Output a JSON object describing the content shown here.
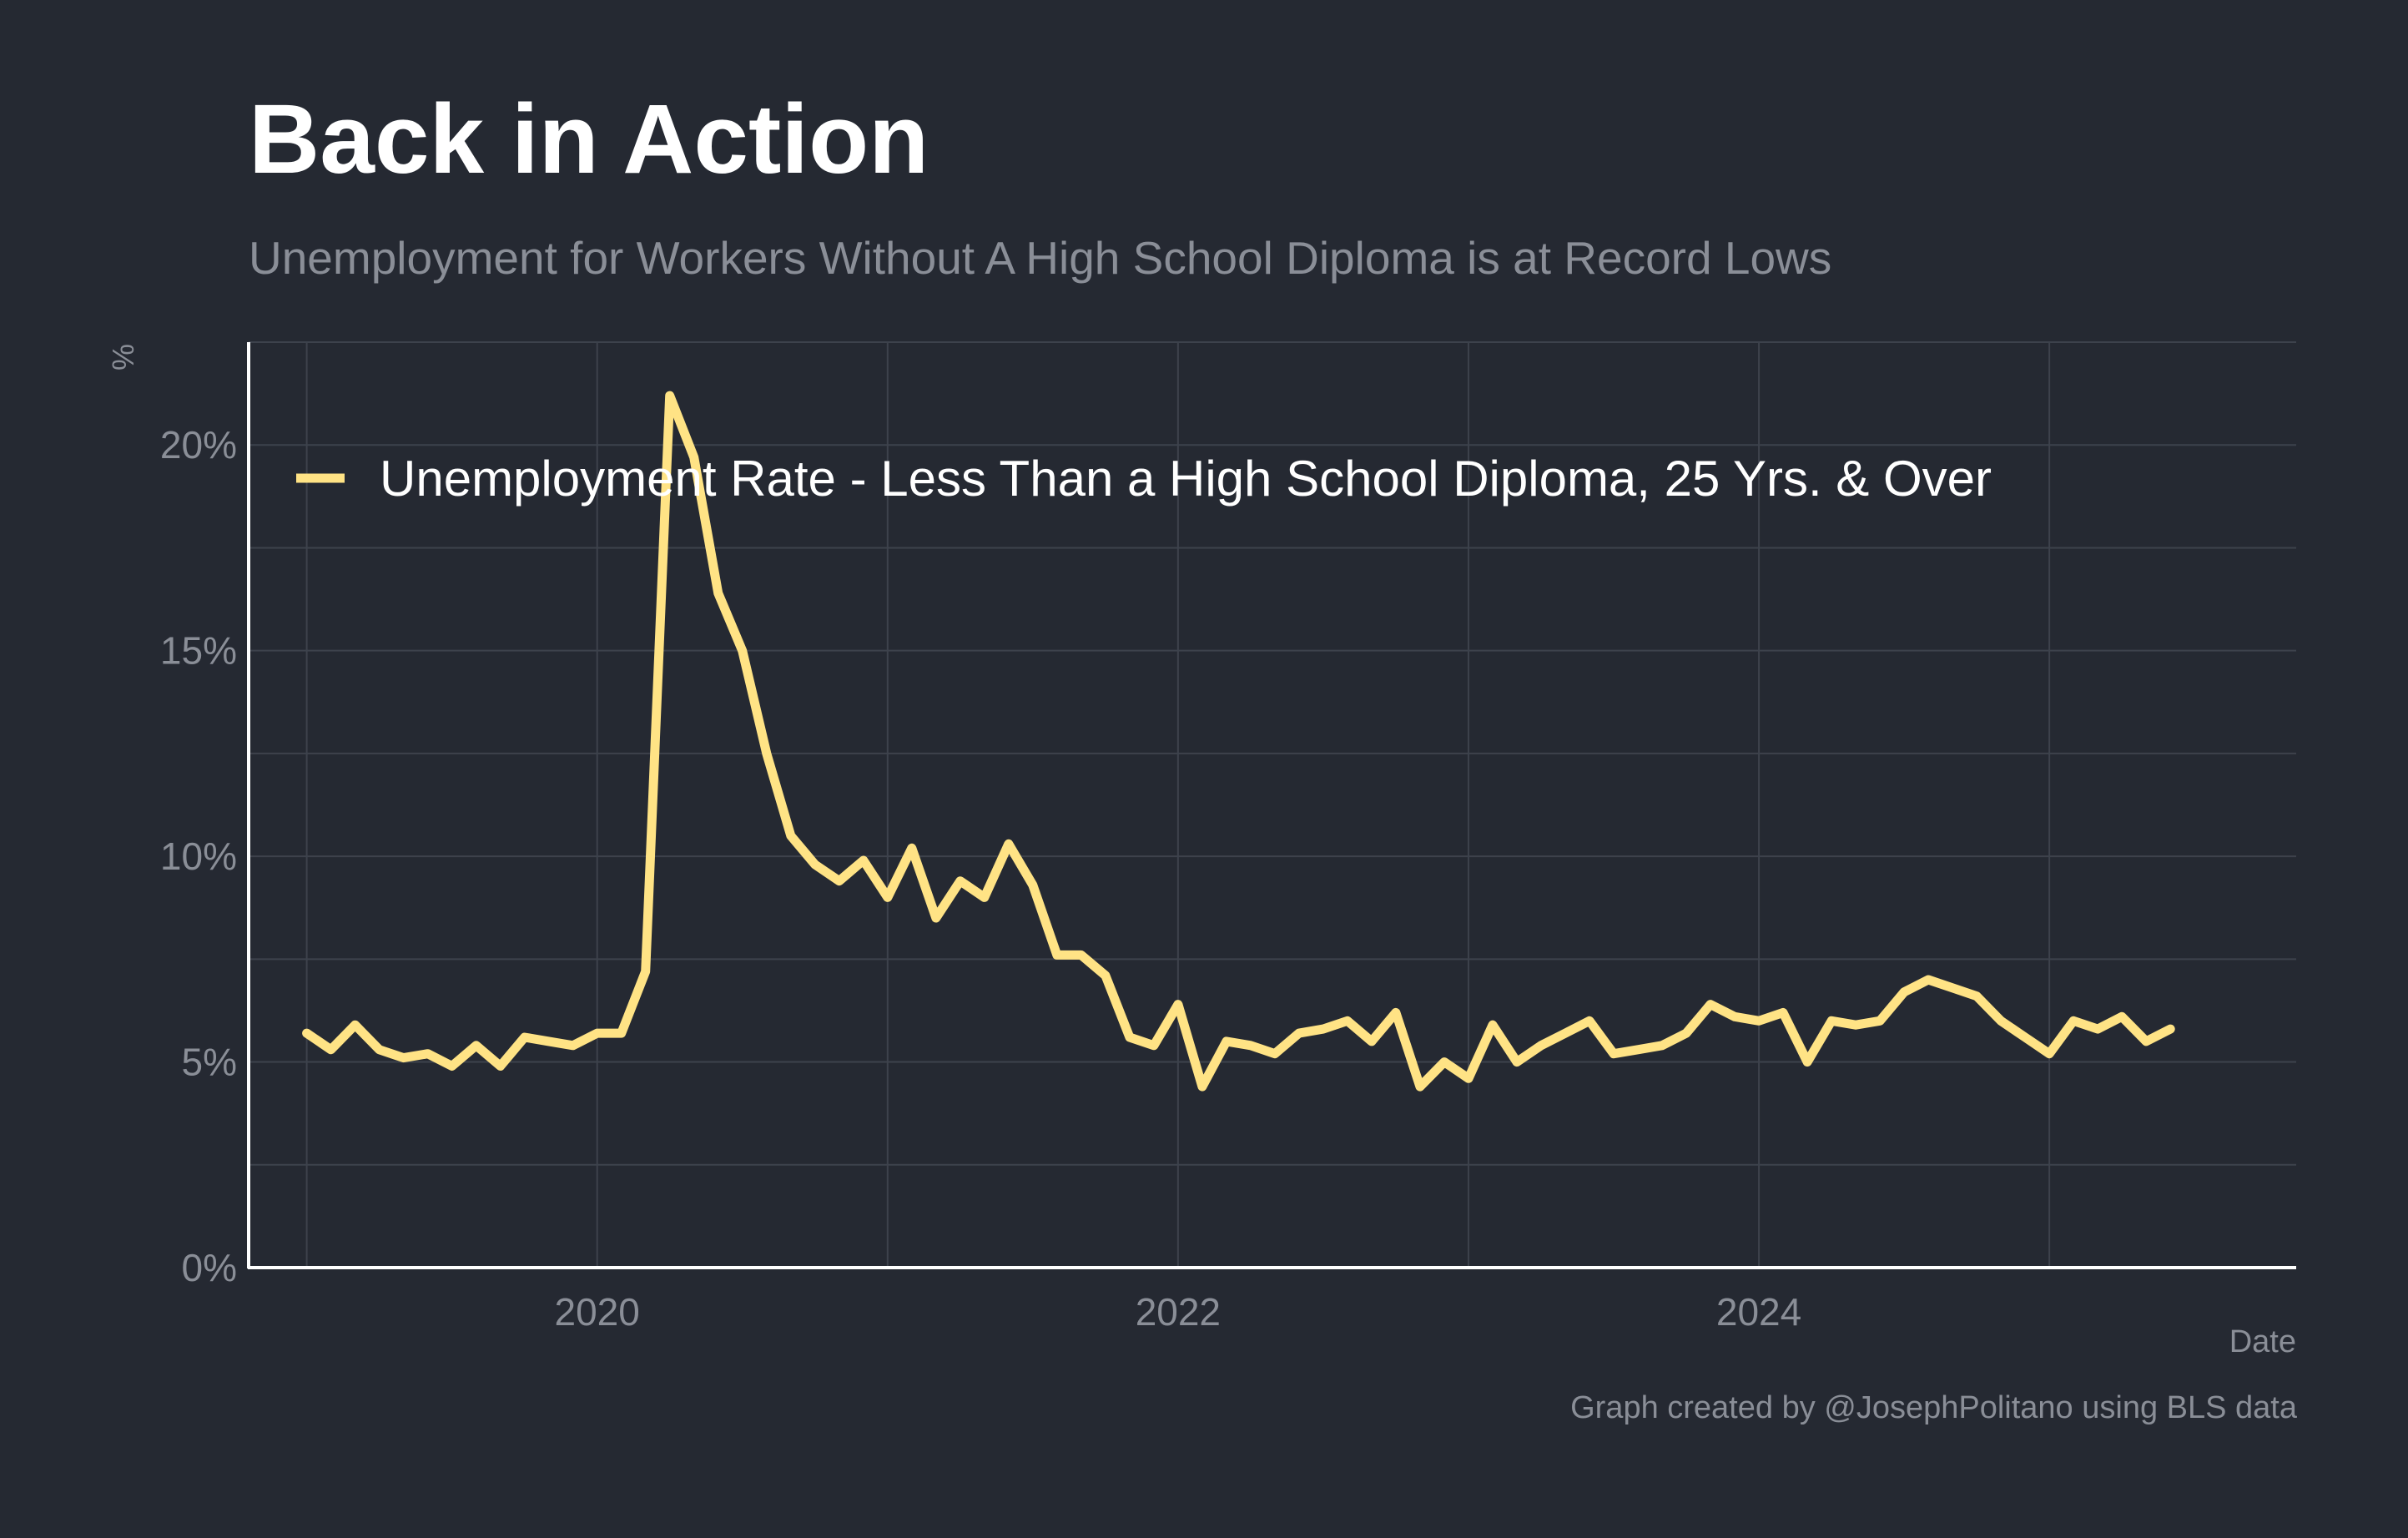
{
  "title": "Back in Action",
  "subtitle": "Unemployment for Workers Without A High School Diploma is at Record Lows",
  "caption": "Graph created by @JosephPolitano using BLS data",
  "colors": {
    "background": "#252932",
    "series": "#FFE385",
    "grid": "#3d424c",
    "axis": "#ffffff",
    "muted_text": "#8a8e97"
  },
  "chart_data": {
    "type": "line",
    "xlabel": "Date",
    "ylabel": "%",
    "xlim": [
      2018.8,
      2025.85
    ],
    "ylim": [
      0,
      22.5
    ],
    "y_ticks": [
      0,
      5,
      10,
      15,
      20
    ],
    "y_tick_labels": [
      "0%",
      "5%",
      "10%",
      "15%",
      "20%"
    ],
    "x_ticks": [
      2020,
      2022,
      2024
    ],
    "x_tick_labels": [
      "2020",
      "2022",
      "2024"
    ],
    "grid": true,
    "legend_position": "top-left",
    "series": [
      {
        "name": "Unemployment Rate - Less Than a High School Diploma, 25 Yrs. & Over",
        "color": "#FFE385",
        "x": [
          "2019-01",
          "2019-02",
          "2019-03",
          "2019-04",
          "2019-05",
          "2019-06",
          "2019-07",
          "2019-08",
          "2019-09",
          "2019-10",
          "2019-11",
          "2019-12",
          "2020-01",
          "2020-02",
          "2020-03",
          "2020-04",
          "2020-05",
          "2020-06",
          "2020-07",
          "2020-08",
          "2020-09",
          "2020-10",
          "2020-11",
          "2020-12",
          "2021-01",
          "2021-02",
          "2021-03",
          "2021-04",
          "2021-05",
          "2021-06",
          "2021-07",
          "2021-08",
          "2021-09",
          "2021-10",
          "2021-11",
          "2021-12",
          "2022-01",
          "2022-02",
          "2022-03",
          "2022-04",
          "2022-05",
          "2022-06",
          "2022-07",
          "2022-08",
          "2022-09",
          "2022-10",
          "2022-11",
          "2022-12",
          "2023-01",
          "2023-02",
          "2023-03",
          "2023-04",
          "2023-05",
          "2023-06",
          "2023-07",
          "2023-08",
          "2023-09",
          "2023-10",
          "2023-11",
          "2023-12",
          "2024-01",
          "2024-02",
          "2024-03",
          "2024-04",
          "2024-05",
          "2024-06",
          "2024-07",
          "2024-08",
          "2024-09",
          "2024-10",
          "2024-11",
          "2024-12",
          "2025-01",
          "2025-02",
          "2025-03",
          "2025-04",
          "2025-05",
          "2025-06"
        ],
        "values": [
          5.7,
          5.3,
          5.9,
          5.3,
          5.1,
          5.2,
          4.9,
          5.4,
          4.9,
          5.6,
          5.5,
          5.4,
          5.7,
          5.7,
          7.2,
          21.2,
          19.7,
          16.4,
          15.0,
          12.5,
          10.5,
          9.8,
          9.4,
          9.9,
          9.0,
          10.2,
          8.5,
          9.4,
          9.0,
          10.3,
          9.3,
          7.6,
          7.6,
          7.1,
          5.6,
          5.4,
          6.4,
          4.4,
          5.5,
          5.4,
          5.2,
          5.7,
          5.8,
          6.0,
          5.5,
          6.2,
          4.4,
          5.0,
          4.6,
          5.9,
          5.0,
          5.4,
          5.7,
          6.0,
          5.2,
          5.3,
          5.4,
          5.7,
          6.4,
          6.1,
          6.0,
          6.2,
          5.0,
          6.0,
          5.9,
          6.0,
          6.7,
          7.0,
          6.8,
          6.6,
          6.0,
          5.6,
          5.2,
          6.0,
          5.8,
          6.1,
          5.5,
          5.8
        ]
      }
    ]
  }
}
